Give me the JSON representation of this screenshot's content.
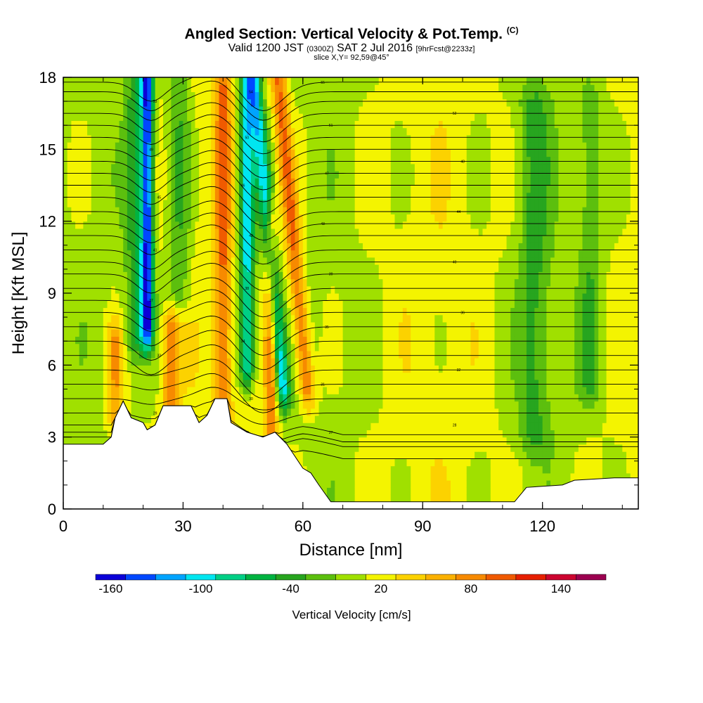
{
  "header": {
    "title": "Angled Section: Vertical Velocity & Pot.Temp.",
    "title_tag": "(C)",
    "valid_prefix": "Valid 1200 JST",
    "valid_utc": "(0300Z)",
    "valid_date": "SAT 2 Jul 2016",
    "forecast": "[9hrFcst@2233z]",
    "slice": "slice X,Y= 92,59@45°"
  },
  "chart_data": {
    "type": "heatmap",
    "title": "Angled Section: Vertical Velocity & Pot.Temp.",
    "xlabel": "Distance [nm]",
    "ylabel": "Height [Kft MSL]",
    "xlim": [
      0,
      144
    ],
    "ylim": [
      0,
      18
    ],
    "x_ticks": [
      0,
      30,
      60,
      90,
      120
    ],
    "y_ticks": [
      0,
      3,
      6,
      9,
      12,
      15,
      18
    ],
    "x_tick_labels": [
      "0",
      "30",
      "60",
      "90",
      "120"
    ],
    "y_tick_labels": [
      "0",
      "3",
      "6",
      "9",
      "12",
      "15",
      "18"
    ],
    "colorbar": {
      "title": "Vertical Velocity [cm/s]",
      "levels": [
        -170,
        -150,
        -130,
        -110,
        -90,
        -70,
        -50,
        -30,
        -10,
        10,
        30,
        50,
        70,
        90,
        110,
        130,
        150,
        170
      ],
      "colors": [
        "#0b00d8",
        "#0048ff",
        "#00a4ff",
        "#00e6f0",
        "#00cf85",
        "#00b341",
        "#27a51f",
        "#5cbf0e",
        "#a0e000",
        "#f4f400",
        "#fcd200",
        "#fbb100",
        "#f78a00",
        "#f05a00",
        "#e62000",
        "#cc0530",
        "#9c0050",
        "#6a007f"
      ],
      "tick_values": [
        -160,
        -100,
        -40,
        20,
        80,
        140
      ],
      "tick_labels": [
        "-160",
        "-100",
        "-40",
        "20",
        "80",
        "140"
      ]
    },
    "vertical_velocity_features": [
      {
        "x": 21,
        "half_width_nm": 1.6,
        "z_bottom_kft": 7.5,
        "z_top_kft": 18,
        "peak": -160,
        "label": "strong downdraft core"
      },
      {
        "x": 18,
        "half_width_nm": 2.5,
        "z_bottom_kft": 7,
        "z_top_kft": 18,
        "peak": -50,
        "label": "downdraft flank"
      },
      {
        "x": 46,
        "half_width_nm": 2.0,
        "z_bottom_kft": 6,
        "z_top_kft": 18,
        "peak": -115,
        "label": "downdraft band"
      },
      {
        "x": 55,
        "half_width_nm": 1.8,
        "z_bottom_kft": 5,
        "z_top_kft": 18,
        "peak": -105,
        "label": "tilted downdraft band"
      },
      {
        "x": 29,
        "half_width_nm": 3.0,
        "z_bottom_kft": 9,
        "z_top_kft": 18,
        "peak": -45,
        "label": "weak sinking"
      },
      {
        "x": 40,
        "half_width_nm": 2.0,
        "z_bottom_kft": 3,
        "z_top_kft": 18,
        "peak": 75,
        "label": "updraft band"
      },
      {
        "x": 52,
        "half_width_nm": 1.5,
        "z_bottom_kft": 3,
        "z_top_kft": 12,
        "peak": 80,
        "label": "updraft band"
      },
      {
        "x": 61,
        "half_width_nm": 2.0,
        "z_bottom_kft": 5,
        "z_top_kft": 18,
        "peak": 85,
        "label": "tilted updraft band"
      },
      {
        "x": 27,
        "half_width_nm": 2.0,
        "z_bottom_kft": 3.5,
        "z_top_kft": 7.5,
        "peak": 70,
        "label": "low-level updraft"
      },
      {
        "x": 13,
        "half_width_nm": 2.0,
        "z_bottom_kft": 4,
        "z_top_kft": 7,
        "peak": 60,
        "label": "low-level updraft"
      },
      {
        "x": 118,
        "half_width_nm": 4.0,
        "z_bottom_kft": 3,
        "z_top_kft": 17,
        "peak": -40,
        "label": "broad weak sinking"
      },
      {
        "x": 132,
        "half_width_nm": 3.0,
        "z_bottom_kft": 5,
        "z_top_kft": 17,
        "peak": -35,
        "label": "broad weak sinking"
      }
    ],
    "terrain_kft": [
      {
        "x": 0,
        "z": 2.7
      },
      {
        "x": 10,
        "z": 2.7
      },
      {
        "x": 12,
        "z": 3.0
      },
      {
        "x": 13,
        "z": 3.8
      },
      {
        "x": 15,
        "z": 4.5
      },
      {
        "x": 17,
        "z": 3.8
      },
      {
        "x": 20,
        "z": 3.6
      },
      {
        "x": 21,
        "z": 3.3
      },
      {
        "x": 23,
        "z": 3.5
      },
      {
        "x": 25,
        "z": 4.3
      },
      {
        "x": 32,
        "z": 4.3
      },
      {
        "x": 34,
        "z": 3.6
      },
      {
        "x": 36,
        "z": 3.9
      },
      {
        "x": 38,
        "z": 4.6
      },
      {
        "x": 41,
        "z": 4.6
      },
      {
        "x": 42,
        "z": 3.6
      },
      {
        "x": 46,
        "z": 3.2
      },
      {
        "x": 50,
        "z": 3.0
      },
      {
        "x": 53,
        "z": 3.2
      },
      {
        "x": 56,
        "z": 2.7
      },
      {
        "x": 60,
        "z": 1.7
      },
      {
        "x": 62,
        "z": 1.5
      },
      {
        "x": 64,
        "z": 1.0
      },
      {
        "x": 67,
        "z": 0.3
      },
      {
        "x": 85,
        "z": 0.3
      },
      {
        "x": 100,
        "z": 0.3
      },
      {
        "x": 113,
        "z": 0.3
      },
      {
        "x": 116,
        "z": 0.9
      },
      {
        "x": 125,
        "z": 1.0
      },
      {
        "x": 128,
        "z": 1.2
      },
      {
        "x": 138,
        "z": 1.3
      },
      {
        "x": 144,
        "z": 1.3
      }
    ],
    "potential_temperature_contours": {
      "units": "C",
      "interval": 1,
      "levels": [
        25,
        26,
        27,
        28,
        29,
        30,
        31,
        32,
        33,
        34,
        35,
        36,
        37,
        38,
        39,
        40,
        41,
        42,
        43,
        44,
        45,
        46,
        47,
        48,
        49,
        50,
        51,
        52,
        53,
        54,
        55
      ],
      "base_heights_kft": [
        2.5,
        3.0,
        3.2,
        3.5,
        4.0,
        4.6,
        5.2,
        5.8,
        6.4,
        7.0,
        7.6,
        8.2,
        8.7,
        9.2,
        9.8,
        10.3,
        10.8,
        11.4,
        11.9,
        12.4,
        13.0,
        13.5,
        14.0,
        14.5,
        15.0,
        15.5,
        16.0,
        16.5,
        17.0,
        17.4,
        17.8
      ]
    }
  }
}
